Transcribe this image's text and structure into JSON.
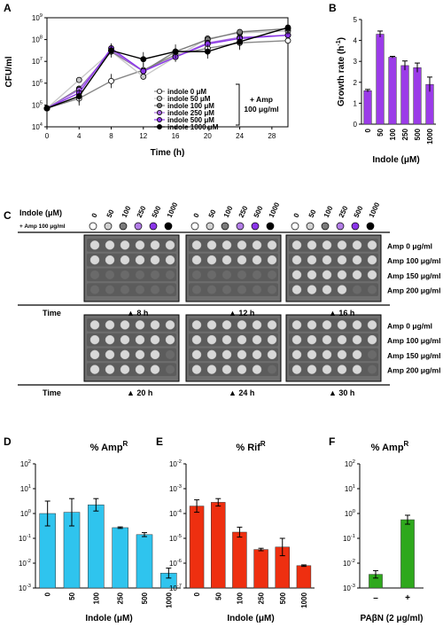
{
  "panel_labels": {
    "A": "A",
    "B": "B",
    "C": "C",
    "D": "D",
    "E": "E",
    "F": "F"
  },
  "chart_data": [
    {
      "panel": "A",
      "type": "line",
      "xlabel": "Time (h)",
      "ylabel": "CFU/ml",
      "x": [
        0,
        4,
        8,
        12,
        16,
        20,
        24,
        30
      ],
      "xticks": [
        "0",
        "4",
        "8",
        "12",
        "16",
        "20",
        "24",
        "28"
      ],
      "yticks": [
        "10",
        "10",
        "10",
        "10",
        "10",
        "10"
      ],
      "ytick_exponents": [
        "4",
        "5",
        "6",
        "7",
        "8",
        "9"
      ],
      "ylim": [
        4,
        9
      ],
      "xlim": [
        0,
        30
      ],
      "log_y": true,
      "series": [
        {
          "name": "indole 0 μM",
          "color": "#ffffff",
          "values": [
            4.85,
            5.3,
            6.1,
            6.6,
            7.3,
            7.6,
            7.85,
            7.95
          ]
        },
        {
          "name": "indole 50 μM",
          "color": "#c8c8c8",
          "values": [
            4.85,
            6.15,
            7.45,
            6.3,
            7.2,
            8.05,
            8.3,
            8.4
          ]
        },
        {
          "name": "indole 100 μM",
          "color": "#7a7a7a",
          "values": [
            4.85,
            5.75,
            7.45,
            6.55,
            7.45,
            8.0,
            8.35,
            8.5
          ]
        },
        {
          "name": "indole 250 μM",
          "color": "#a86be0",
          "values": [
            4.85,
            5.7,
            7.5,
            6.55,
            7.2,
            7.85,
            8.1,
            8.2
          ]
        },
        {
          "name": "indole 500 μM",
          "color": "#8a35e8",
          "values": [
            4.85,
            5.55,
            7.6,
            6.55,
            7.2,
            7.8,
            8.05,
            8.2
          ]
        },
        {
          "name": "indole 1000 μM",
          "color": "#000000",
          "values": [
            4.85,
            5.4,
            7.5,
            7.1,
            7.45,
            7.45,
            7.9,
            8.55
          ]
        }
      ],
      "annotation": [
        "+ Amp",
        "100 μg/ml"
      ]
    },
    {
      "panel": "B",
      "type": "bar",
      "ylabel": "Growth rate (h",
      "ylabel_sup": "-1",
      "ylabel_end": ")",
      "xlabel": "Indole (μM)",
      "categories": [
        "0",
        "50",
        "100",
        "250",
        "500",
        "1000"
      ],
      "values": [
        1.6,
        4.3,
        3.2,
        2.8,
        2.7,
        1.9
      ],
      "errors": [
        0.06,
        0.15,
        0.04,
        0.22,
        0.22,
        0.35
      ],
      "ylim": [
        0,
        5
      ],
      "yticks": [
        "0",
        "1",
        "2",
        "3",
        "4",
        "5"
      ],
      "color": "#9b3ce8"
    },
    {
      "panel": "D",
      "type": "bar",
      "title": "% Amp",
      "title_sup": "R",
      "xlabel": "Indole (μM)",
      "categories": [
        "0",
        "50",
        "100",
        "250",
        "500",
        "1000"
      ],
      "values_log10": [
        0.0,
        0.05,
        0.35,
        -0.57,
        -0.85,
        -2.4
      ],
      "errors_log10": [
        0.5,
        0.55,
        0.25,
        0.03,
        0.08,
        0.2
      ],
      "log_y": true,
      "ylim_log10": [
        -3,
        2
      ],
      "yticks": [
        "10",
        "10",
        "10",
        "10",
        "10",
        "10"
      ],
      "ytick_exponents": [
        "-3",
        "-2",
        "-1",
        "0",
        "1",
        "2"
      ],
      "color": "#2fc4ee"
    },
    {
      "panel": "E",
      "type": "bar",
      "title": "% Rif",
      "title_sup": "R",
      "xlabel": "Indole (μM)",
      "categories": [
        "0",
        "50",
        "100",
        "250",
        "500",
        "1000"
      ],
      "values_log10": [
        -3.7,
        -3.55,
        -4.75,
        -5.45,
        -5.35,
        -6.1
      ],
      "errors_log10": [
        0.25,
        0.15,
        0.2,
        0.05,
        0.35,
        0.03
      ],
      "log_y": true,
      "ylim_log10": [
        -7,
        -2
      ],
      "yticks": [
        "10",
        "10",
        "10",
        "10",
        "10",
        "10"
      ],
      "ytick_exponents": [
        "-7",
        "-6",
        "-5",
        "-4",
        "-3",
        "-2"
      ],
      "color": "#ee2f10"
    },
    {
      "panel": "F",
      "type": "bar",
      "title": "% Amp",
      "title_sup": "R",
      "xlabel": "PAβN (2 μg/ml)",
      "categories": [
        "–",
        "+"
      ],
      "values_log10": [
        -2.45,
        -0.25
      ],
      "errors_log10": [
        0.15,
        0.18
      ],
      "log_y": true,
      "ylim_log10": [
        -3,
        2
      ],
      "yticks": [
        "10",
        "10",
        "10",
        "10",
        "10",
        "10"
      ],
      "ytick_exponents": [
        "-3",
        "-2",
        "-1",
        "0",
        "1",
        "2"
      ],
      "color": "#2ea81c"
    }
  ],
  "panel_c": {
    "header_label": "Indole (μM)",
    "amp_note": "+ Amp 100 μg/ml",
    "concentrations": [
      "0",
      "50",
      "100",
      "250",
      "500",
      "1000"
    ],
    "circle_colors": [
      "#ffffff",
      "#d0d0d0",
      "#7a7a7a",
      "#b27de6",
      "#8a35e8",
      "#000000"
    ],
    "row_labels": [
      "Amp    0 μg/ml",
      "Amp 100 μg/ml",
      "Amp 150 μg/ml",
      "Amp 200 μg/ml"
    ],
    "time_label": "Time",
    "times_top": [
      "8 h",
      "12 h",
      "16 h"
    ],
    "times_bottom": [
      "20 h",
      "24 h",
      "30 h"
    ],
    "marker": "▲"
  }
}
